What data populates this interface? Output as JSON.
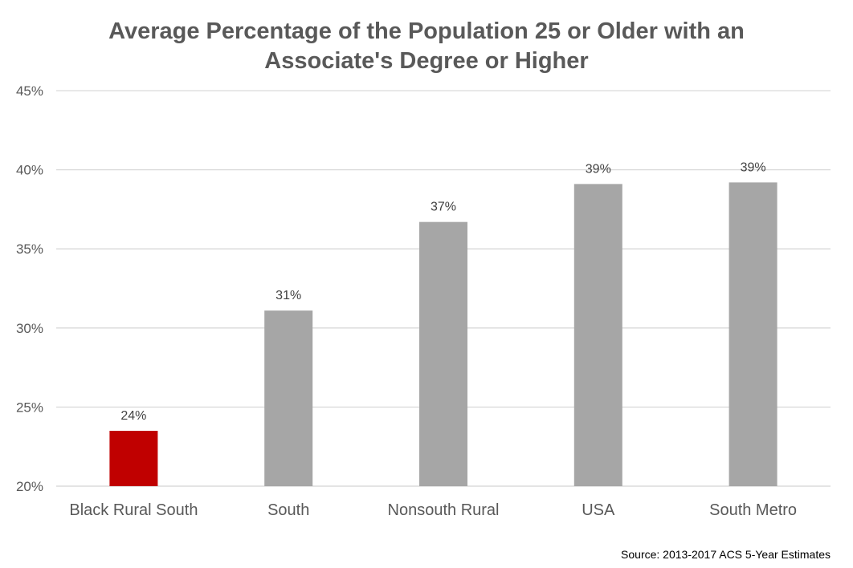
{
  "chart_data": {
    "type": "bar",
    "title": "Average Percentage of the Population 25 or Older with an Associate's Degree or Higher",
    "title_lines": [
      "Average Percentage of the Population 25 or Older with an",
      "Associate's Degree or Higher"
    ],
    "categories": [
      "Black Rural South",
      "South",
      "Nonsouth Rural",
      "USA",
      "South Metro"
    ],
    "values": [
      23.5,
      31.1,
      36.7,
      39.1,
      39.2
    ],
    "data_labels": [
      "24%",
      "31%",
      "37%",
      "39%",
      "39%"
    ],
    "ylim": [
      20,
      45
    ],
    "yticks": [
      20,
      25,
      30,
      35,
      40,
      45
    ],
    "ytick_labels": [
      "20%",
      "25%",
      "30%",
      "35%",
      "40%",
      "45%"
    ],
    "xlabel": "",
    "ylabel": "",
    "grid": true,
    "legend": "none",
    "source": "Source: 2013-2017 ACS 5-Year Estimates",
    "colors": {
      "highlight": "#c00000",
      "default": "#a6a6a6",
      "grid": "#d9d9d9",
      "text": "#595959"
    },
    "highlight_index": 0
  }
}
